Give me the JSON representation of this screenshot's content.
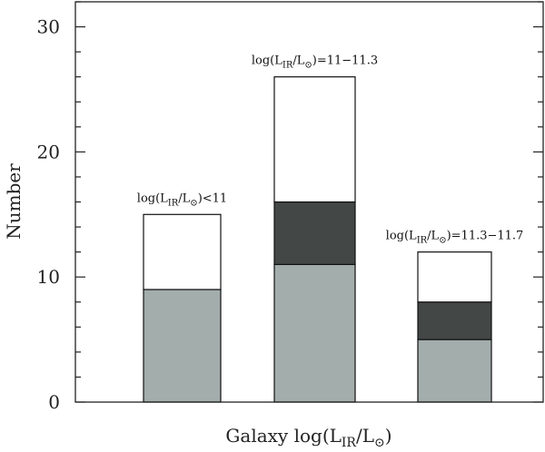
{
  "chart_data": {
    "type": "bar",
    "stacked": true,
    "title": "",
    "xlabel": "Galaxy log(L_IR/L_⊙)",
    "ylabel": "Number",
    "ylim": [
      0,
      32
    ],
    "yticks": [
      0,
      10,
      20,
      30
    ],
    "yminor_step": 2,
    "grid": false,
    "categories": [
      "log(L_IR/L_⊙)<11",
      "log(L_IR/L_⊙)=11−11.3",
      "log(L_IR/L_⊙)=11.3−11.7"
    ],
    "annotations": [
      {
        "pre": "log(L",
        "sub": "IR",
        "post": "/L",
        "sun": "⊙",
        "tail": ")<11"
      },
      {
        "pre": "log(L",
        "sub": "IR",
        "post": "/L",
        "sun": "⊙",
        "tail": ")=11−11.3"
      },
      {
        "pre": "log(L",
        "sub": "IR",
        "post": "/L",
        "sun": "⊙",
        "tail": ")=11.3−11.7"
      }
    ],
    "series": [
      {
        "name": "gray",
        "color": "#a3adac",
        "values": [
          9,
          11,
          5
        ]
      },
      {
        "name": "dark",
        "color": "#434746",
        "values": [
          0,
          5,
          3
        ]
      },
      {
        "name": "white",
        "color": "#ffffff",
        "values": [
          6,
          10,
          4
        ]
      }
    ],
    "totals": [
      15,
      26,
      12
    ]
  },
  "xlabel_parts": {
    "pre": "Galaxy log(L",
    "sub": "IR",
    "post": "/L",
    "sun": "⊙",
    "tail": ")"
  }
}
